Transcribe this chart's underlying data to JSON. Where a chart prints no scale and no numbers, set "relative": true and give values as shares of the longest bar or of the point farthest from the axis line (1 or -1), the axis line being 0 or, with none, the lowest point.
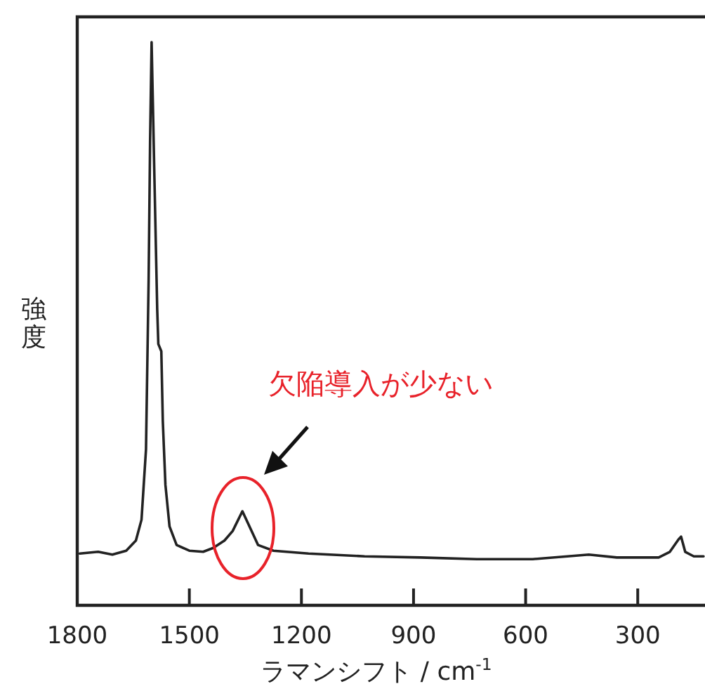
{
  "chart_data": {
    "type": "line",
    "relative": true,
    "xlabel": "ラマンシフト / cm$^{-1}$",
    "ylabel": "強度",
    "color": "#222222",
    "xlim": [
      1800,
      120
    ],
    "xticks": [
      1800,
      1500,
      1200,
      900,
      600,
      300
    ],
    "line_style": "solid",
    "annotations": [
      "欠陥導入が少ない"
    ],
    "x": [
      1793,
      1744,
      1706,
      1669,
      1643,
      1628,
      1616,
      1609,
      1605,
      1601,
      1594,
      1586,
      1583,
      1575,
      1571,
      1564,
      1553,
      1534,
      1500,
      1463,
      1436,
      1406,
      1384,
      1358,
      1339,
      1316,
      1275,
      1181,
      1031,
      881,
      731,
      581,
      488,
      431,
      356,
      244,
      214,
      191,
      184,
      173,
      150,
      124
    ],
    "values": [
      0.092,
      0.095,
      0.09,
      0.097,
      0.115,
      0.152,
      0.277,
      0.576,
      0.825,
      1,
      0.776,
      0.526,
      0.464,
      0.451,
      0.327,
      0.214,
      0.14,
      0.107,
      0.097,
      0.095,
      0.102,
      0.115,
      0.132,
      0.167,
      0.14,
      0.107,
      0.097,
      0.092,
      0.087,
      0.085,
      0.082,
      0.082,
      0.087,
      0.09,
      0.085,
      0.085,
      0.095,
      0.117,
      0.122,
      0.095,
      0.087,
      0.087
    ]
  }
}
